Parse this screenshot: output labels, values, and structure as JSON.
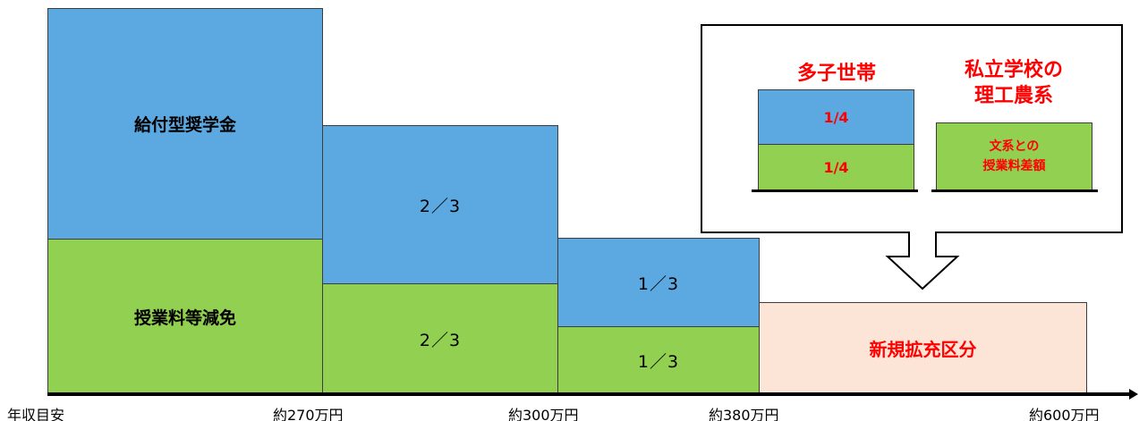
{
  "main_blocks": {
    "kyufu_label": "給付型奨学金",
    "genmen_label": "授業料等減免",
    "tier2_top": "2／3",
    "tier2_bottom": "2／3",
    "tier3_top": "1／3",
    "tier3_bottom": "1／3",
    "new_label": "新規拡充区分"
  },
  "callout": {
    "tashi_title": "多子世帯",
    "tashi_top": "1/4",
    "tashi_bottom": "1/4",
    "shiritsu_title_line1": "私立学校の",
    "shiritsu_title_line2": "理工農系",
    "shiritsu_box_line1": "文系との",
    "shiritsu_box_line2": "授業料差額"
  },
  "axis": {
    "origin_label": "年収目安",
    "tick_270": "約270万円",
    "tick_300": "約300万円",
    "tick_380": "約380万円",
    "tick_600": "約600万円"
  },
  "colors": {
    "blue": "#5ca9e2",
    "green": "#92d051",
    "peach": "#fce4d6",
    "red_text": "#ff0000"
  }
}
